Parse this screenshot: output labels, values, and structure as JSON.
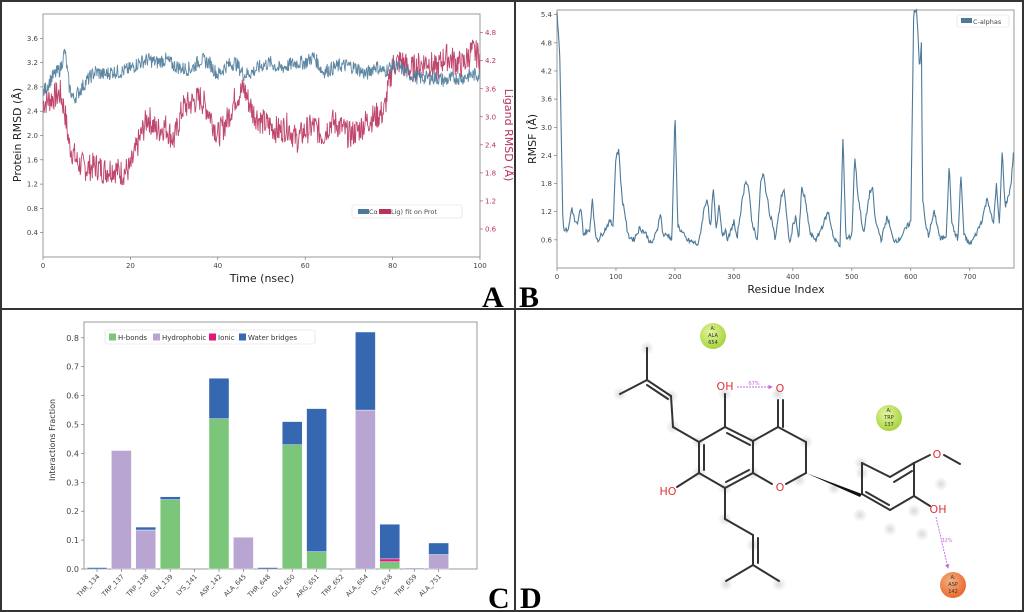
{
  "panels": {
    "A": "A",
    "B": "B",
    "C": "C",
    "D": "D"
  },
  "colors": {
    "protein": "#4d7a99",
    "ligand": "#b8325c",
    "hbonds": "#7bc67b",
    "hydrophobic": "#b9a5d1",
    "ionic": "#e0197a",
    "water": "#3568b0",
    "rmsf": "#4d7a99"
  },
  "chart_data": [
    {
      "type": "line",
      "title": "",
      "xlabel": "Time (nsec)",
      "ylabel": "Protein RMSD (Å)",
      "y2label": "Ligand RMSD (Å)",
      "xlim": [
        0,
        100
      ],
      "ylim": [
        0,
        4.0
      ],
      "y2lim": [
        0,
        5.2
      ],
      "xticks": [
        "0",
        "20",
        "40",
        "60",
        "80",
        "100"
      ],
      "yticks": [
        "0.4",
        "0.8",
        "1.2",
        "1.6",
        "2.0",
        "2.4",
        "2.8",
        "3.2",
        "3.6"
      ],
      "y2ticks": [
        "0.6",
        "1.2",
        "1.8",
        "2.4",
        "3.0",
        "3.6",
        "4.2",
        "4.8"
      ],
      "legend": {
        "position": "lower-right",
        "text": "Cα",
        "text2": "Lig) fit on Prot"
      },
      "series": [
        {
          "name": "Protein Cα RMSD",
          "axis": "left",
          "x": [
            0,
            2,
            4,
            5,
            6,
            7,
            8,
            10,
            12,
            14,
            16,
            18,
            20,
            22,
            24,
            26,
            28,
            30,
            32,
            34,
            36,
            38,
            40,
            42,
            44,
            46,
            48,
            50,
            52,
            54,
            56,
            58,
            60,
            62,
            64,
            66,
            68,
            70,
            72,
            74,
            76,
            78,
            80,
            82,
            84,
            86,
            88,
            90,
            92,
            94,
            96,
            98,
            100
          ],
          "values": [
            2.7,
            2.95,
            3.1,
            3.4,
            2.8,
            2.6,
            2.7,
            2.9,
            3.05,
            3.0,
            3.05,
            3.05,
            3.1,
            3.2,
            3.25,
            3.2,
            3.25,
            3.15,
            3.1,
            3.1,
            3.25,
            3.2,
            3.0,
            3.15,
            3.2,
            3.0,
            3.05,
            3.15,
            3.2,
            3.1,
            3.15,
            3.2,
            3.2,
            3.3,
            3.05,
            3.1,
            3.15,
            3.15,
            3.1,
            3.0,
            3.15,
            3.05,
            3.15,
            3.1,
            3.0,
            2.95,
            2.95,
            2.95,
            2.9,
            2.95,
            2.95,
            3.0,
            3.0
          ]
        },
        {
          "name": "Ligand fit on Protein RMSD",
          "axis": "right",
          "x": [
            0,
            2,
            4,
            5,
            6,
            7,
            8,
            10,
            12,
            14,
            16,
            18,
            20,
            22,
            24,
            26,
            28,
            30,
            32,
            34,
            36,
            38,
            40,
            42,
            44,
            46,
            48,
            50,
            52,
            54,
            56,
            58,
            60,
            62,
            64,
            66,
            68,
            70,
            72,
            74,
            76,
            78,
            80,
            82,
            84,
            86,
            88,
            90,
            92,
            94,
            96,
            98,
            100
          ],
          "values": [
            3.3,
            3.4,
            3.5,
            3.1,
            2.4,
            2.2,
            2.0,
            1.9,
            1.95,
            1.85,
            1.9,
            1.8,
            1.9,
            2.5,
            3.0,
            2.7,
            2.8,
            2.5,
            3.2,
            3.3,
            3.4,
            3.1,
            2.6,
            2.9,
            3.4,
            3.6,
            3.1,
            2.9,
            2.8,
            2.7,
            2.8,
            2.5,
            2.7,
            2.8,
            2.6,
            2.9,
            2.8,
            2.6,
            2.7,
            2.9,
            3.0,
            3.1,
            4.1,
            4.2,
            4.0,
            4.1,
            4.2,
            4.0,
            4.3,
            4.2,
            4.1,
            4.4,
            4.3
          ]
        }
      ]
    },
    {
      "type": "line",
      "title": "",
      "xlabel": "Residue Index",
      "ylabel": "RMSF (Å)",
      "xlim": [
        0,
        775
      ],
      "ylim": [
        0,
        5.5
      ],
      "xticks": [
        "0",
        "100",
        "200",
        "300",
        "400",
        "500",
        "600",
        "700"
      ],
      "yticks": [
        "0.6",
        "1.2",
        "1.8",
        "2.4",
        "3.0",
        "3.6",
        "4.2",
        "4.8",
        "5.4"
      ],
      "legend": {
        "position": "top-right",
        "text": "C-alphas"
      },
      "series": [
        {
          "name": "C-alphas",
          "x": [
            0,
            5,
            10,
            15,
            20,
            25,
            30,
            35,
            40,
            45,
            50,
            55,
            60,
            65,
            70,
            75,
            80,
            90,
            95,
            100,
            105,
            110,
            115,
            120,
            130,
            140,
            150,
            160,
            170,
            175,
            180,
            190,
            195,
            200,
            205,
            210,
            220,
            230,
            240,
            250,
            255,
            260,
            265,
            270,
            275,
            280,
            285,
            290,
            300,
            305,
            310,
            320,
            325,
            330,
            340,
            345,
            350,
            355,
            360,
            365,
            370,
            380,
            385,
            390,
            395,
            400,
            405,
            410,
            415,
            420,
            430,
            440,
            450,
            460,
            470,
            480,
            485,
            490,
            500,
            505,
            510,
            520,
            530,
            535,
            540,
            550,
            560,
            570,
            580,
            590,
            600,
            605,
            610,
            615,
            618,
            620,
            625,
            630,
            640,
            650,
            660,
            665,
            670,
            680,
            685,
            690,
            700,
            710,
            720,
            730,
            740,
            745,
            750,
            755,
            760,
            765,
            770,
            775
          ],
          "values": [
            5.5,
            4.5,
            0.9,
            0.8,
            0.85,
            1.3,
            1.0,
            0.9,
            1.3,
            0.7,
            0.8,
            0.75,
            1.5,
            0.7,
            0.6,
            0.7,
            0.8,
            1.0,
            0.9,
            2.4,
            2.5,
            1.5,
            1.2,
            0.7,
            0.6,
            0.85,
            0.75,
            0.5,
            0.8,
            1.2,
            0.7,
            0.7,
            0.6,
            3.3,
            0.9,
            0.8,
            0.6,
            0.55,
            0.5,
            1.3,
            1.5,
            0.8,
            1.7,
            0.8,
            1.4,
            0.7,
            0.8,
            0.6,
            1.0,
            0.6,
            1.1,
            1.9,
            1.7,
            1.0,
            0.6,
            1.8,
            2.0,
            1.6,
            1.2,
            1.0,
            0.6,
            1.5,
            1.7,
            1.0,
            0.5,
            0.9,
            1.1,
            0.6,
            1.7,
            1.5,
            0.7,
            0.6,
            0.9,
            1.2,
            0.6,
            0.5,
            2.8,
            0.6,
            0.7,
            2.4,
            1.6,
            0.7,
            1.6,
            1.7,
            1.0,
            0.6,
            1.1,
            0.6,
            0.6,
            0.8,
            1.0,
            5.5,
            5.5,
            4.2,
            4.8,
            1.5,
            0.9,
            0.7,
            1.2,
            0.6,
            0.7,
            2.2,
            0.9,
            0.6,
            2.0,
            0.7,
            0.5,
            0.7,
            1.0,
            1.5,
            0.9,
            1.8,
            0.9,
            2.5,
            1.3,
            1.5,
            1.8,
            2.6
          ]
        }
      ]
    },
    {
      "type": "bar",
      "stacked": true,
      "title": "",
      "xlabel": "",
      "ylabel": "Interactions Fraction",
      "ylim": [
        0,
        0.85
      ],
      "yticks": [
        "0.0",
        "0.1",
        "0.2",
        "0.3",
        "0.4",
        "0.5",
        "0.6",
        "0.7",
        "0.8"
      ],
      "legend": {
        "position": "top-left",
        "entries": [
          "H-bonds",
          "Hydrophobic",
          "Ionic",
          "Water bridges"
        ]
      },
      "categories": [
        "THR_134",
        "TRP_137",
        "TRP_138",
        "GLN_139",
        "LYS_141",
        "ASP_142",
        "ALA_645",
        "THR_648",
        "GLN_650",
        "ARG_651",
        "TRP_652",
        "ALA_654",
        "LYS_658",
        "TRP_659",
        "ALA_751"
      ],
      "series": [
        {
          "name": "H-bonds",
          "values": [
            0,
            0,
            0,
            0.24,
            0,
            0.52,
            0,
            0,
            0.43,
            0.06,
            0,
            0,
            0.025,
            0,
            0
          ]
        },
        {
          "name": "Hydrophobic",
          "values": [
            0,
            0.41,
            0.135,
            0,
            0,
            0,
            0.11,
            0,
            0,
            0,
            0,
            0.55,
            0,
            0,
            0.05
          ]
        },
        {
          "name": "Ionic",
          "values": [
            0,
            0,
            0,
            0,
            0,
            0,
            0,
            0,
            0,
            0,
            0,
            0,
            0.01,
            0,
            0
          ]
        },
        {
          "name": "Water bridges",
          "values": [
            0.005,
            0,
            0.01,
            0.01,
            0,
            0.14,
            0,
            0.005,
            0.08,
            0.495,
            0,
            0.27,
            0.12,
            0.003,
            0.04
          ]
        }
      ]
    }
  ],
  "diagram": {
    "residues": [
      {
        "chain": "A:",
        "name": "ALA",
        "number": "654",
        "color": "#b9de5a"
      },
      {
        "chain": "A:",
        "name": "TRP",
        "number": "137",
        "color": "#b9de5a"
      },
      {
        "chain": "A:",
        "name": "ASP",
        "number": "142",
        "color": "#ee7f45"
      }
    ],
    "atoms": {
      "oh_top": "OH",
      "o_keto": "O",
      "ho_left": "HO",
      "o_ring": "O",
      "o_methoxy": "O",
      "oh_right": "OH"
    },
    "interactions": [
      {
        "from": "OH",
        "to": "O",
        "percent": "67%"
      },
      {
        "from": "OH",
        "to": "ASP 142",
        "percent": "32%"
      }
    ]
  }
}
